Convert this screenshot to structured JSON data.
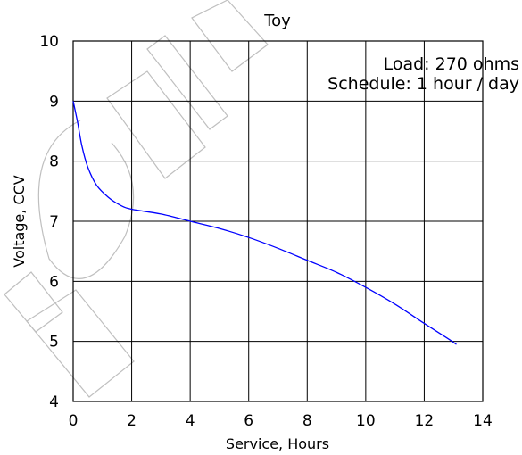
{
  "chart_data": {
    "type": "line",
    "title": "Toy",
    "xlabel": "Service, Hours",
    "ylabel": "Voltage, CCV",
    "xlim": [
      0,
      14
    ],
    "ylim": [
      4,
      10
    ],
    "xticks": [
      "0",
      "2",
      "4",
      "6",
      "8",
      "10",
      "12",
      "14"
    ],
    "yticks": [
      "4",
      "5",
      "6",
      "7",
      "8",
      "9",
      "10"
    ],
    "grid": true,
    "annotations": [
      "Load: 270 ohms",
      "Schedule: 1 hour / day"
    ],
    "series": [
      {
        "color": "#0000ff",
        "x": [
          0,
          0.15,
          0.3,
          0.5,
          0.8,
          1.2,
          1.6,
          2.0,
          3.0,
          4.0,
          5.0,
          6.0,
          7.0,
          8.0,
          9.0,
          10.0,
          11.0,
          12.0,
          12.8,
          13.1
        ],
        "y": [
          9.0,
          8.65,
          8.25,
          7.9,
          7.6,
          7.4,
          7.27,
          7.2,
          7.12,
          7.0,
          6.88,
          6.73,
          6.55,
          6.35,
          6.15,
          5.9,
          5.62,
          5.3,
          5.05,
          4.95
        ]
      }
    ]
  }
}
